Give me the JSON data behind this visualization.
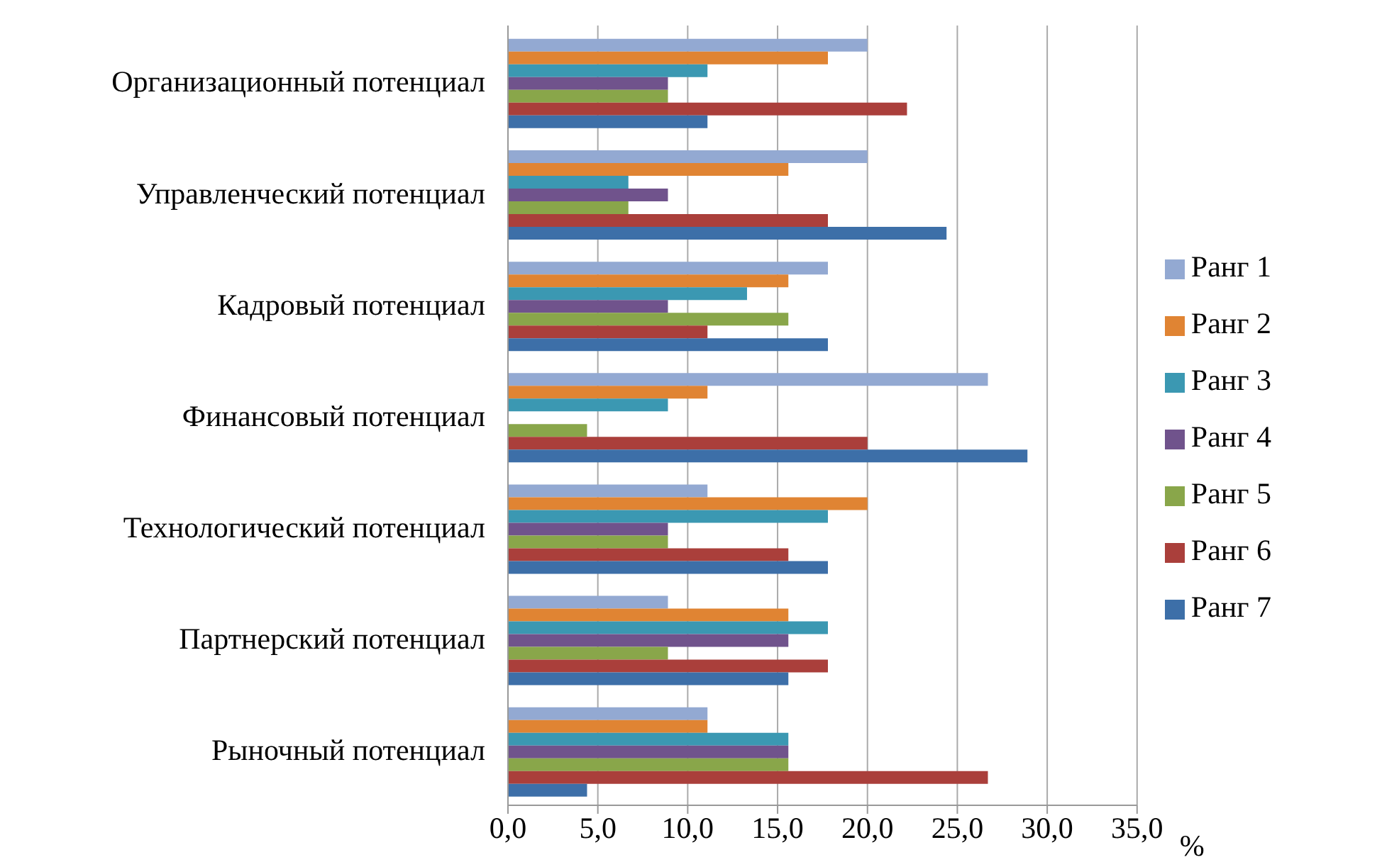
{
  "chart_data": {
    "type": "bar",
    "orientation": "horizontal",
    "xlabel": "%",
    "categories": [
      "Организационный потенциал",
      "Управленческий потенциал",
      "Кадровый потенциал",
      "Финансовый потенциал",
      "Технологический потенциал",
      "Партнерский потенциал",
      "Рыночный потенциал"
    ],
    "series": [
      {
        "name": "Ранг 1",
        "color": "#93a9d2",
        "values": [
          20.0,
          20.0,
          17.8,
          26.7,
          11.1,
          8.9,
          11.1
        ]
      },
      {
        "name": "Ранг 2",
        "color": "#e08433",
        "values": [
          17.8,
          15.6,
          15.6,
          11.1,
          20.0,
          15.6,
          11.1
        ]
      },
      {
        "name": "Ранг 3",
        "color": "#3b98b2",
        "values": [
          11.1,
          6.7,
          13.3,
          8.9,
          17.8,
          17.8,
          15.6
        ]
      },
      {
        "name": "Ранг 4",
        "color": "#70538c",
        "values": [
          8.9,
          8.9,
          8.9,
          0,
          8.9,
          15.6,
          15.6
        ]
      },
      {
        "name": "Ранг 5",
        "color": "#89a64a",
        "values": [
          8.9,
          6.7,
          15.6,
          4.4,
          8.9,
          8.9,
          15.6
        ]
      },
      {
        "name": "Ранг 6",
        "color": "#aa3f3b",
        "values": [
          22.2,
          17.8,
          11.1,
          20.0,
          15.6,
          17.8,
          26.7
        ]
      },
      {
        "name": "Ранг 7",
        "color": "#3d6fa8",
        "values": [
          11.1,
          24.4,
          17.8,
          28.9,
          17.8,
          15.6,
          4.4
        ]
      }
    ],
    "xlim": [
      0,
      35
    ],
    "xticks": [
      {
        "value": 0,
        "label": "0,0"
      },
      {
        "value": 5,
        "label": "5,0"
      },
      {
        "value": 10,
        "label": "10,0"
      },
      {
        "value": 15,
        "label": "15,0"
      },
      {
        "value": 20,
        "label": "20,0"
      },
      {
        "value": 25,
        "label": "25,0"
      },
      {
        "value": 30,
        "label": "30,0"
      },
      {
        "value": 35,
        "label": "35,0"
      }
    ],
    "grid": "x",
    "legend": "right"
  }
}
